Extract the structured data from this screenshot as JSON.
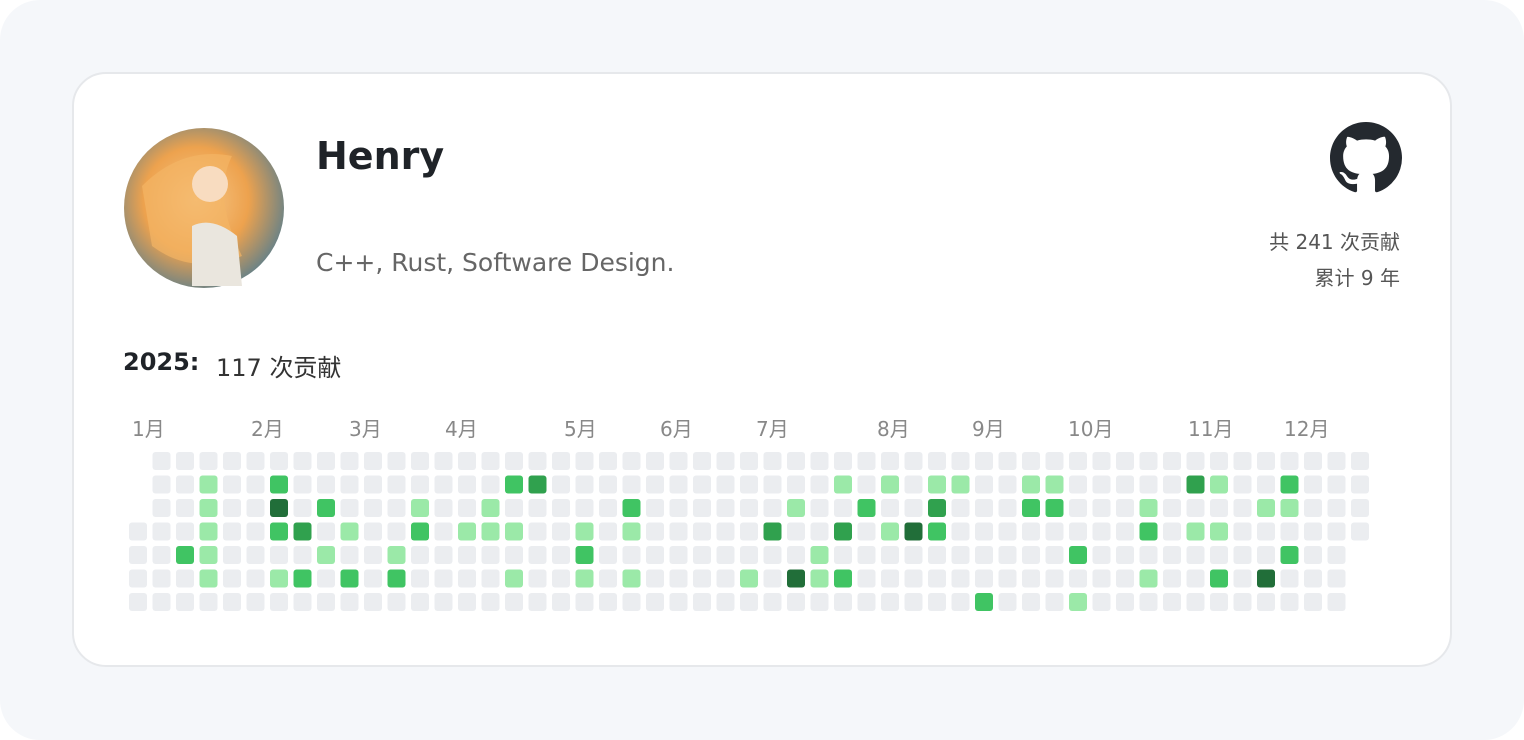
{
  "profile": {
    "name": "Henry",
    "bio": "C++, Rust, Software Design.",
    "total": "共 241 次贡献",
    "years": "累计 9 年"
  },
  "contributions": {
    "year": "2025:",
    "count": "117 次贡献",
    "months": [
      "1月",
      "2月",
      "3月",
      "4月",
      "5月",
      "6月",
      "7月",
      "8月",
      "9月",
      "10月",
      "11月",
      "12月"
    ],
    "level_colors": [
      "#ebedf0",
      "#9be9a8",
      "#40c463",
      "#30a14e",
      "#216e39"
    ],
    "grid": [
      [
        null,
        0,
        0,
        0,
        0,
        0,
        0,
        0,
        0,
        0,
        0,
        0,
        0,
        0,
        0,
        0,
        0,
        0,
        0,
        0,
        0,
        0,
        0,
        0,
        0,
        0,
        0,
        0,
        0,
        0,
        0,
        0,
        0,
        0,
        0,
        0,
        0,
        0,
        0,
        0,
        0,
        0,
        0,
        0,
        0,
        0,
        0,
        0,
        0,
        0,
        0,
        0,
        0
      ],
      [
        null,
        0,
        0,
        1,
        0,
        0,
        2,
        0,
        0,
        0,
        0,
        0,
        0,
        0,
        0,
        0,
        2,
        3,
        0,
        0,
        0,
        0,
        0,
        0,
        0,
        0,
        0,
        0,
        0,
        0,
        1,
        0,
        1,
        0,
        1,
        1,
        0,
        0,
        1,
        1,
        0,
        0,
        0,
        0,
        0,
        3,
        1,
        0,
        0,
        2,
        0,
        0,
        0
      ],
      [
        null,
        0,
        0,
        1,
        0,
        0,
        4,
        0,
        2,
        0,
        0,
        0,
        1,
        0,
        0,
        1,
        0,
        0,
        0,
        0,
        0,
        2,
        0,
        0,
        0,
        0,
        0,
        0,
        1,
        0,
        0,
        2,
        0,
        0,
        3,
        0,
        0,
        0,
        2,
        2,
        0,
        0,
        0,
        1,
        0,
        0,
        0,
        0,
        1,
        1,
        0,
        0,
        0
      ],
      [
        0,
        0,
        0,
        1,
        0,
        0,
        2,
        3,
        0,
        1,
        0,
        0,
        2,
        0,
        1,
        1,
        1,
        0,
        0,
        1,
        0,
        1,
        0,
        0,
        0,
        0,
        0,
        3,
        0,
        0,
        3,
        0,
        1,
        4,
        2,
        0,
        0,
        0,
        0,
        0,
        0,
        0,
        0,
        2,
        0,
        1,
        1,
        0,
        0,
        0,
        0,
        0,
        0
      ],
      [
        0,
        0,
        2,
        1,
        0,
        0,
        0,
        0,
        1,
        0,
        0,
        1,
        0,
        0,
        0,
        0,
        0,
        0,
        0,
        2,
        0,
        0,
        0,
        0,
        0,
        0,
        0,
        0,
        0,
        1,
        0,
        0,
        0,
        0,
        0,
        0,
        0,
        0,
        0,
        0,
        2,
        0,
        0,
        0,
        0,
        0,
        0,
        0,
        0,
        2,
        0,
        0,
        null
      ],
      [
        0,
        0,
        0,
        1,
        0,
        0,
        1,
        2,
        0,
        2,
        0,
        2,
        0,
        0,
        0,
        0,
        1,
        0,
        0,
        1,
        0,
        1,
        0,
        0,
        0,
        0,
        1,
        0,
        4,
        1,
        2,
        0,
        0,
        0,
        0,
        0,
        0,
        0,
        0,
        0,
        0,
        0,
        0,
        1,
        0,
        0,
        2,
        0,
        4,
        0,
        0,
        0,
        null
      ],
      [
        0,
        0,
        0,
        0,
        0,
        0,
        0,
        0,
        0,
        0,
        0,
        0,
        0,
        0,
        0,
        0,
        0,
        0,
        0,
        0,
        0,
        0,
        0,
        0,
        0,
        0,
        0,
        0,
        0,
        0,
        0,
        0,
        0,
        0,
        0,
        0,
        2,
        0,
        0,
        0,
        1,
        0,
        0,
        0,
        0,
        0,
        0,
        0,
        0,
        0,
        0,
        0,
        null
      ]
    ]
  }
}
